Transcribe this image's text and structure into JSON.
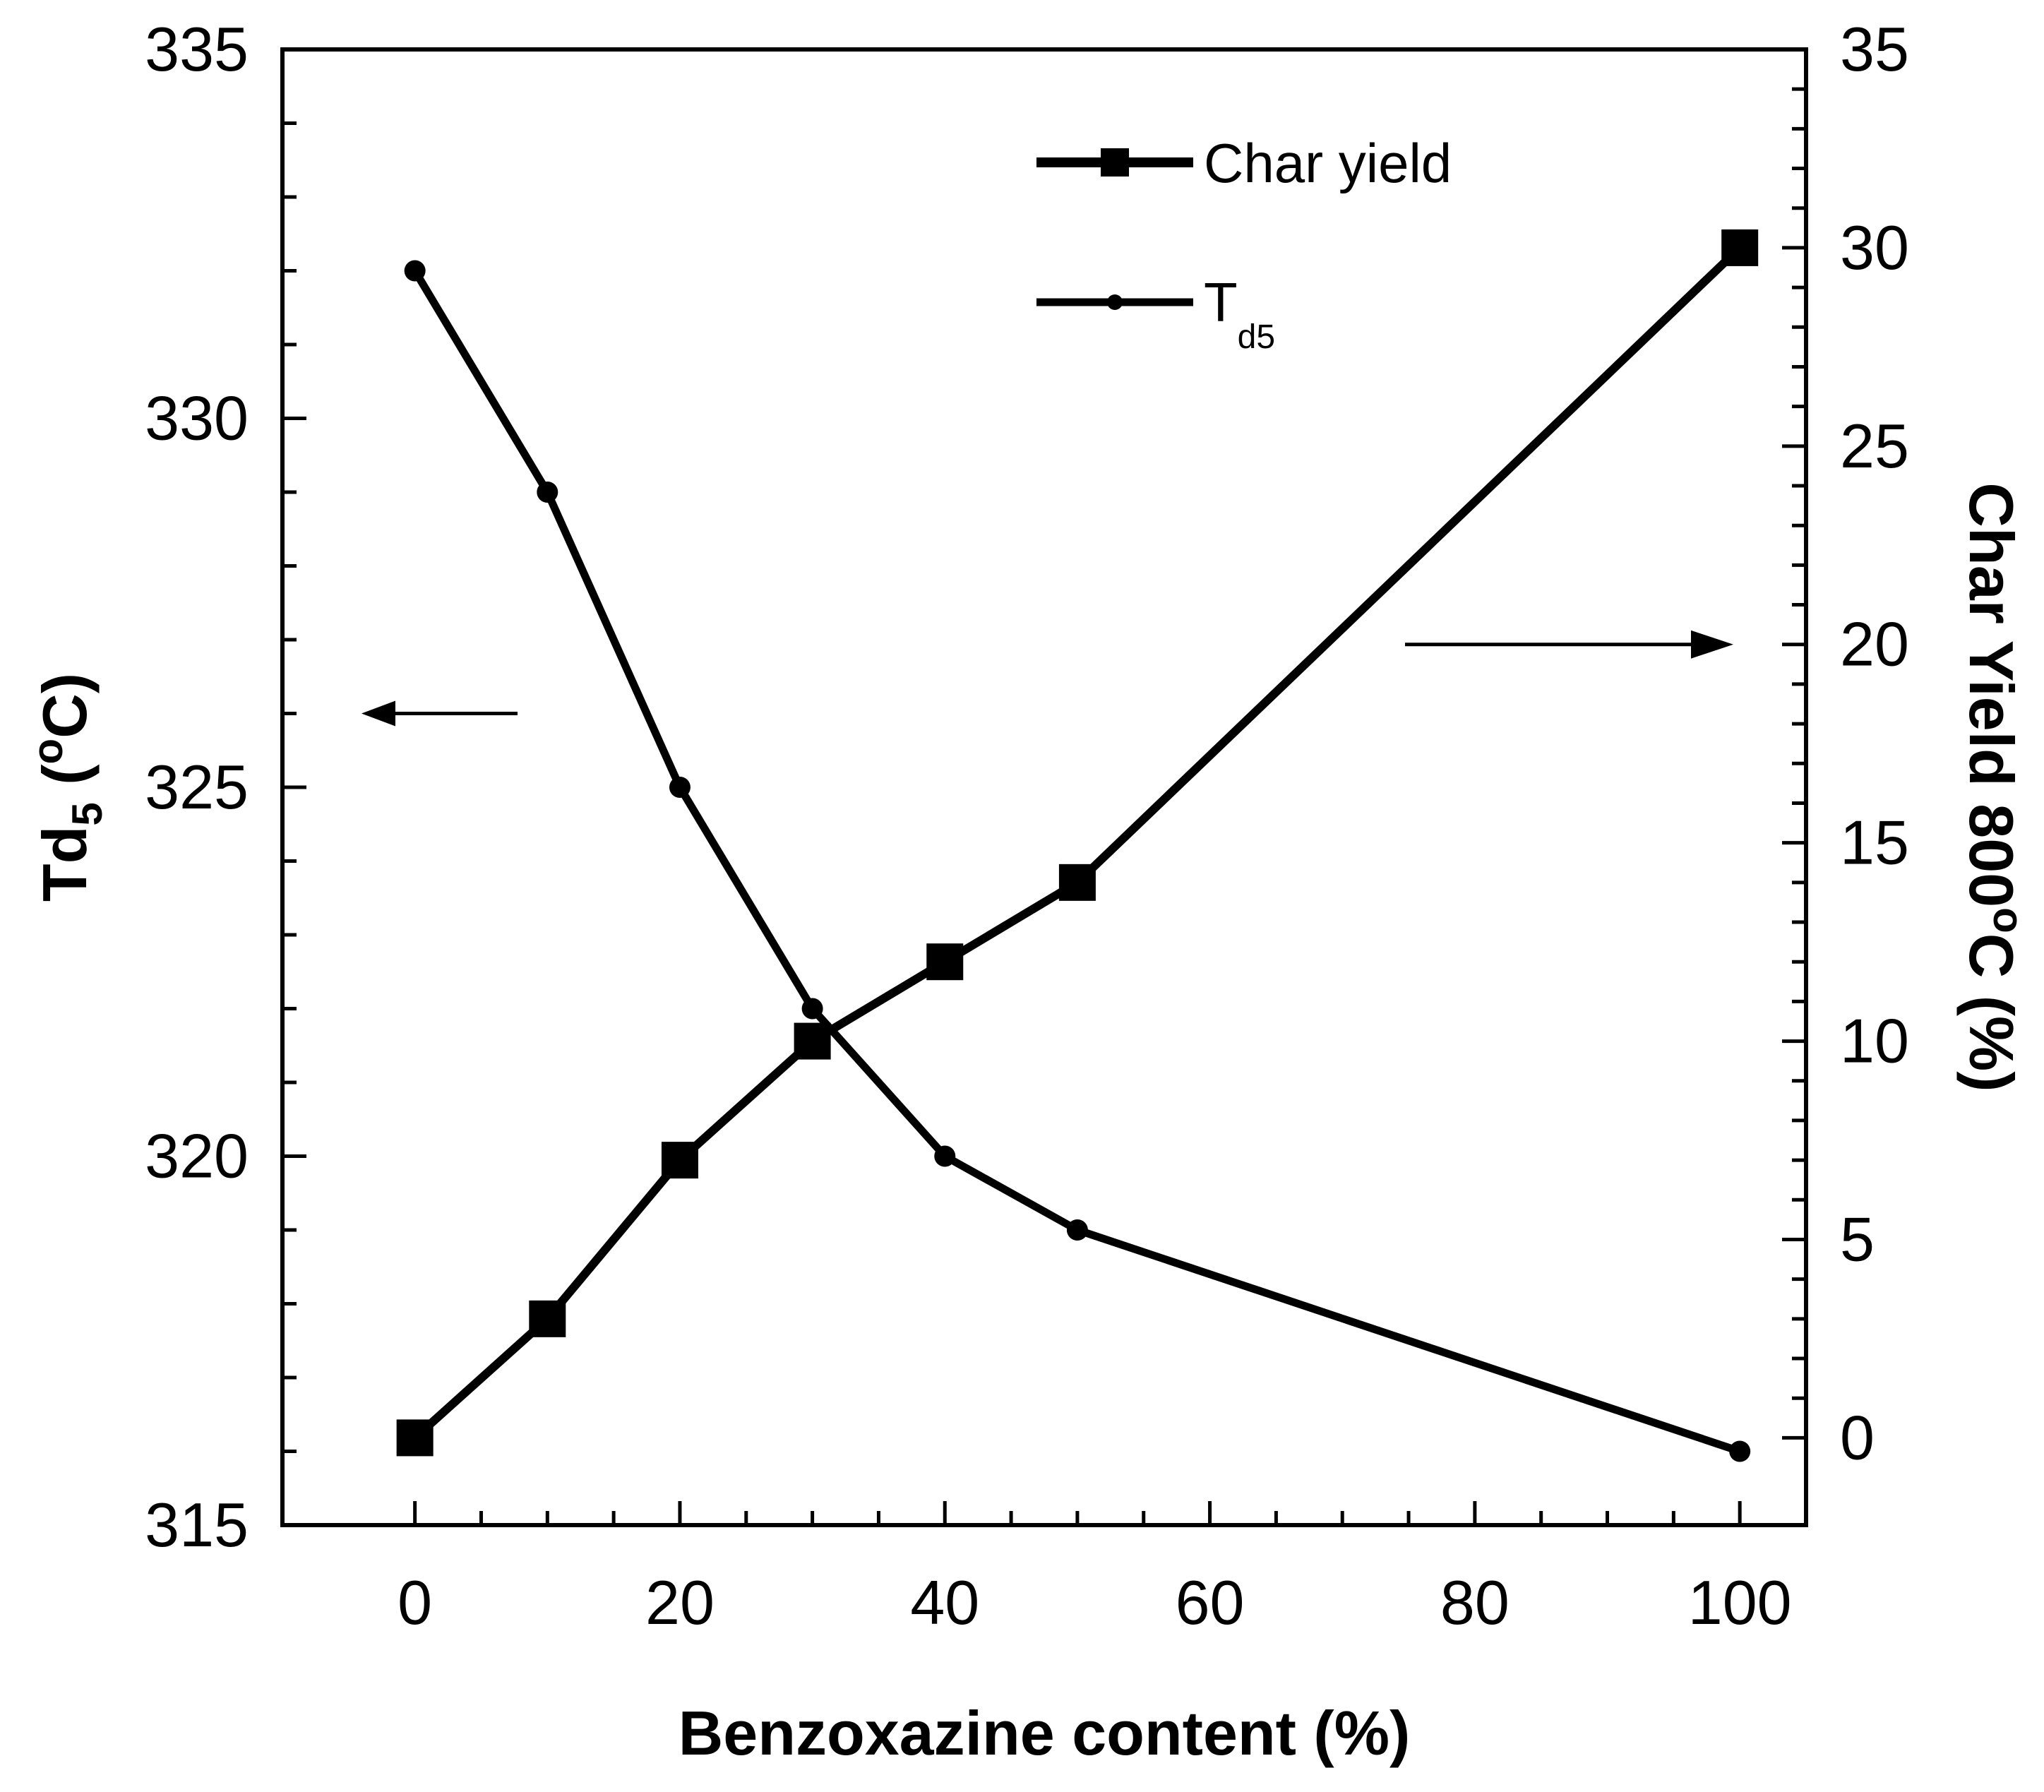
{
  "chart_data": {
    "type": "line",
    "title": "",
    "xlabel": "Benzoxazine content (%)",
    "xlim": [
      -10,
      105
    ],
    "x_ticks": [
      0,
      20,
      40,
      60,
      80,
      100
    ],
    "y_left": {
      "label_main": "Td",
      "label_sub": "5",
      "label_paren_open": " (",
      "label_sup": "o",
      "label_unit": "C)",
      "ylim": [
        315,
        335
      ],
      "ticks": [
        315,
        320,
        325,
        330,
        335
      ]
    },
    "y_right": {
      "label_main": "Char Yield 800",
      "label_sup": "o",
      "label_unit": "C (%)",
      "ylim": [
        -2.2,
        35
      ],
      "ticks": [
        0,
        5,
        10,
        15,
        20,
        25,
        30,
        35
      ]
    },
    "series": [
      {
        "name": "Char yield",
        "axis": "right",
        "marker": "square",
        "x": [
          0,
          10,
          20,
          30,
          40,
          50,
          100
        ],
        "values": [
          0,
          3,
          7,
          10,
          12,
          14,
          30
        ]
      },
      {
        "name": "T",
        "name_sub": "d5",
        "axis": "left",
        "marker": "circle",
        "x": [
          0,
          10,
          20,
          30,
          40,
          50,
          100
        ],
        "values": [
          332,
          329,
          325,
          322,
          320,
          319,
          316
        ]
      }
    ],
    "annotations": [
      {
        "type": "arrow",
        "points_to": "left-axis",
        "y_axis": "left",
        "y": 326
      },
      {
        "type": "arrow",
        "points_to": "right-axis",
        "y_axis": "right",
        "y": 20
      }
    ],
    "legend_position": "top-center",
    "grid": false
  }
}
